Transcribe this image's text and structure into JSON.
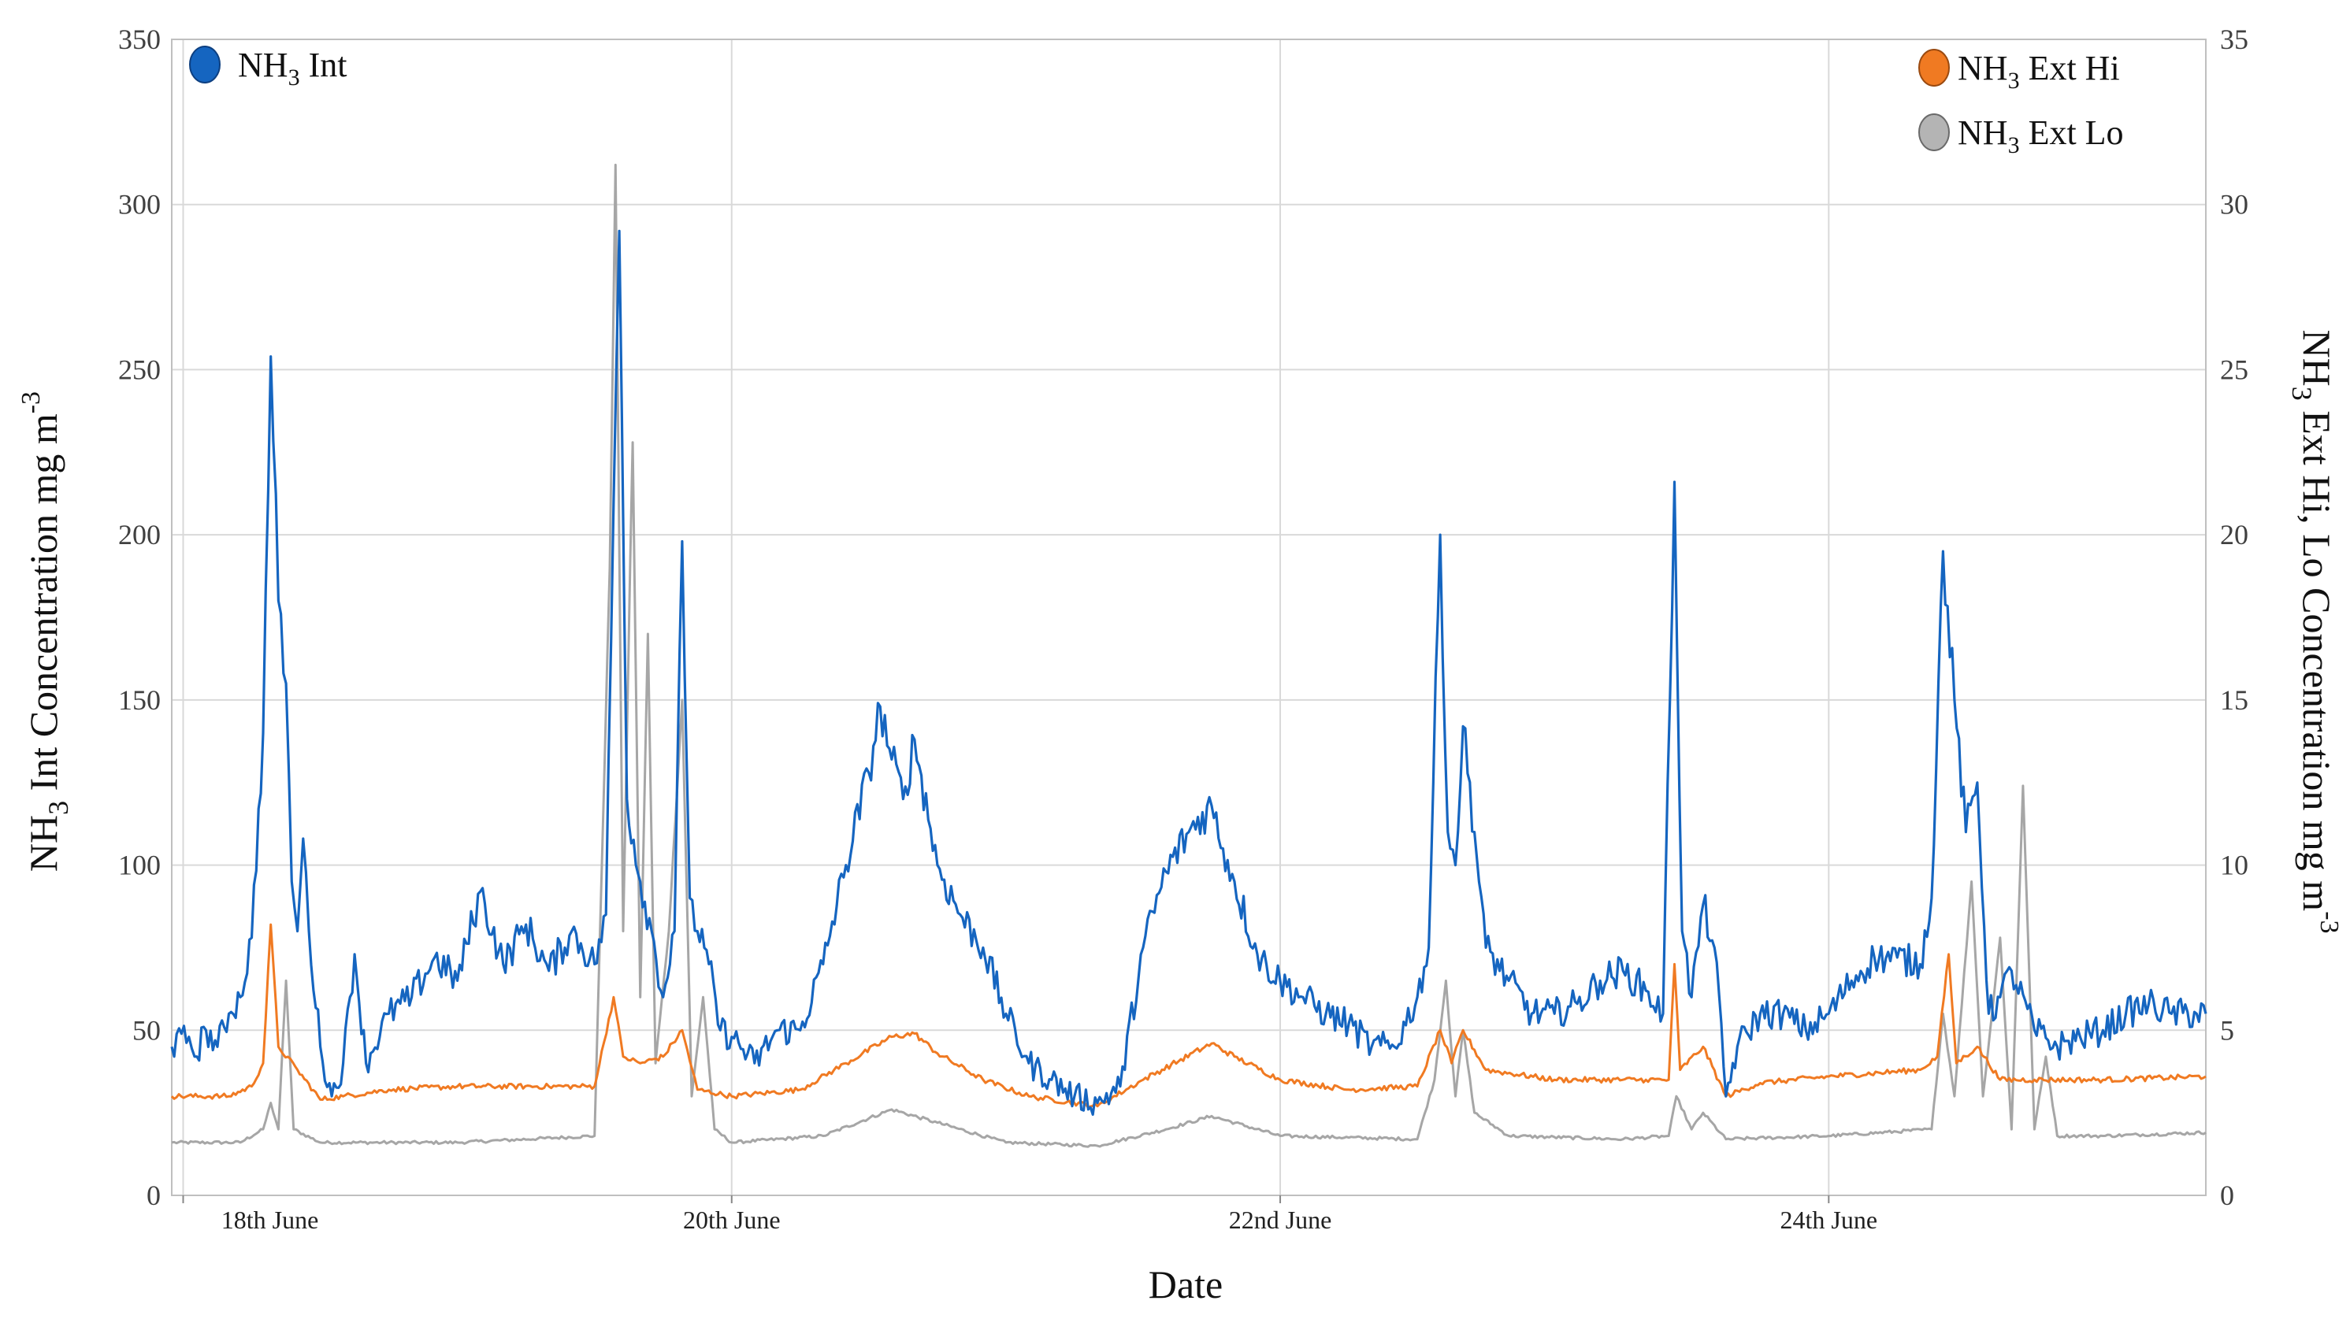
{
  "chart_data": {
    "type": "line",
    "xlabel": "Date",
    "ylabel_left": {
      "pre": "NH",
      "sub": "3",
      "post": " Int Concentration mg  m",
      "sup": "-3"
    },
    "ylabel_right": {
      "pre": "NH",
      "sub": "3",
      "post": " Ext Hi, Lo Concentration mg  m",
      "sup": "-3"
    },
    "x_start": "2018-06-17T23:00",
    "x_end": "2018-06-25T09:00",
    "x_ticks": [
      {
        "label": "18th June",
        "at": "2018-06-18T00:00"
      },
      {
        "label": "20th June",
        "at": "2018-06-20T00:00"
      },
      {
        "label": "22nd June",
        "at": "2018-06-22T00:00"
      },
      {
        "label": "24th June",
        "at": "2018-06-24T00:00"
      }
    ],
    "y_left": {
      "range": [
        0,
        350
      ],
      "ticks": [
        "0",
        "50",
        "100",
        "150",
        "200",
        "250",
        "300",
        "350"
      ]
    },
    "y_right": {
      "range": [
        0,
        35
      ],
      "ticks": [
        "0",
        "5",
        "10",
        "15",
        "20",
        "25",
        "30",
        "35"
      ]
    },
    "grid": true,
    "legend": [
      {
        "series": "int",
        "label_pre": "NH",
        "label_sub": "3",
        "label_post": " Int",
        "placement": "top-left"
      },
      {
        "series": "hi",
        "label_pre": "NH",
        "label_sub": "3",
        "label_post": " Ext Hi",
        "placement": "top-right"
      },
      {
        "series": "lo",
        "label_pre": "NH",
        "label_sub": "3",
        "label_post": " Ext Lo",
        "placement": "top-right"
      }
    ],
    "series": [
      {
        "id": "int",
        "axis": "left",
        "color": "#1565c0",
        "points": [
          [
            "2018-06-17T23:00",
            45
          ],
          [
            "2018-06-18T00:30",
            48
          ],
          [
            "2018-06-18T01:00",
            42
          ],
          [
            "2018-06-18T02:00",
            50
          ],
          [
            "2018-06-18T03:00",
            45
          ],
          [
            "2018-06-18T04:00",
            55
          ],
          [
            "2018-06-18T05:00",
            60
          ],
          [
            "2018-06-18T06:00",
            78
          ],
          [
            "2018-06-18T07:00",
            140
          ],
          [
            "2018-06-18T07:40",
            254
          ],
          [
            "2018-06-18T08:20",
            180
          ],
          [
            "2018-06-18T09:00",
            155
          ],
          [
            "2018-06-18T09:30",
            95
          ],
          [
            "2018-06-18T10:00",
            80
          ],
          [
            "2018-06-18T10:30",
            108
          ],
          [
            "2018-06-18T11:00",
            80
          ],
          [
            "2018-06-18T12:00",
            45
          ],
          [
            "2018-06-18T13:00",
            30
          ],
          [
            "2018-06-18T14:00",
            40
          ],
          [
            "2018-06-18T15:00",
            73
          ],
          [
            "2018-06-18T16:00",
            40
          ],
          [
            "2018-06-18T18:00",
            55
          ],
          [
            "2018-06-18T20:00",
            60
          ],
          [
            "2018-06-18T22:00",
            72
          ],
          [
            "2018-06-19T00:00",
            65
          ],
          [
            "2018-06-19T02:00",
            92
          ],
          [
            "2018-06-19T04:00",
            70
          ],
          [
            "2018-06-19T06:00",
            82
          ],
          [
            "2018-06-19T08:00",
            68
          ],
          [
            "2018-06-19T10:00",
            80
          ],
          [
            "2018-06-19T12:00",
            70
          ],
          [
            "2018-06-19T13:00",
            85
          ],
          [
            "2018-06-19T13:40",
            210
          ],
          [
            "2018-06-19T14:10",
            292
          ],
          [
            "2018-06-19T14:50",
            120
          ],
          [
            "2018-06-19T16:00",
            95
          ],
          [
            "2018-06-19T17:00",
            80
          ],
          [
            "2018-06-19T18:00",
            60
          ],
          [
            "2018-06-19T19:00",
            80
          ],
          [
            "2018-06-19T19:40",
            198
          ],
          [
            "2018-06-19T20:20",
            90
          ],
          [
            "2018-06-19T21:00",
            80
          ],
          [
            "2018-06-19T22:00",
            70
          ],
          [
            "2018-06-19T23:00",
            50
          ],
          [
            "2018-06-20T00:00",
            48
          ],
          [
            "2018-06-20T02:00",
            40
          ],
          [
            "2018-06-20T04:00",
            50
          ],
          [
            "2018-06-20T06:00",
            50
          ],
          [
            "2018-06-20T08:00",
            70
          ],
          [
            "2018-06-20T10:00",
            100
          ],
          [
            "2018-06-20T12:00",
            128
          ],
          [
            "2018-06-20T13:00",
            148
          ],
          [
            "2018-06-20T14:00",
            132
          ],
          [
            "2018-06-20T15:00",
            120
          ],
          [
            "2018-06-20T16:00",
            138
          ],
          [
            "2018-06-20T18:00",
            100
          ],
          [
            "2018-06-20T20:00",
            85
          ],
          [
            "2018-06-20T22:00",
            75
          ],
          [
            "2018-06-21T00:00",
            55
          ],
          [
            "2018-06-21T02:00",
            40
          ],
          [
            "2018-06-21T04:00",
            35
          ],
          [
            "2018-06-21T06:00",
            30
          ],
          [
            "2018-06-21T08:00",
            28
          ],
          [
            "2018-06-21T10:00",
            33
          ],
          [
            "2018-06-21T12:00",
            75
          ],
          [
            "2018-06-21T14:00",
            98
          ],
          [
            "2018-06-21T16:00",
            110
          ],
          [
            "2018-06-21T18:00",
            118
          ],
          [
            "2018-06-21T19:00",
            105
          ],
          [
            "2018-06-21T20:00",
            95
          ],
          [
            "2018-06-21T22:00",
            73
          ],
          [
            "2018-06-22T00:00",
            65
          ],
          [
            "2018-06-22T02:00",
            60
          ],
          [
            "2018-06-22T04:00",
            55
          ],
          [
            "2018-06-22T06:00",
            52
          ],
          [
            "2018-06-22T08:00",
            45
          ],
          [
            "2018-06-22T10:00",
            45
          ],
          [
            "2018-06-22T12:00",
            60
          ],
          [
            "2018-06-22T13:00",
            75
          ],
          [
            "2018-06-22T14:00",
            200
          ],
          [
            "2018-06-22T14:40",
            110
          ],
          [
            "2018-06-22T15:20",
            100
          ],
          [
            "2018-06-22T16:00",
            142
          ],
          [
            "2018-06-22T17:00",
            110
          ],
          [
            "2018-06-22T18:00",
            75
          ],
          [
            "2018-06-22T20:00",
            65
          ],
          [
            "2018-06-22T22:00",
            55
          ],
          [
            "2018-06-23T00:00",
            55
          ],
          [
            "2018-06-23T02:00",
            58
          ],
          [
            "2018-06-23T04:00",
            65
          ],
          [
            "2018-06-23T06:00",
            68
          ],
          [
            "2018-06-23T08:00",
            62
          ],
          [
            "2018-06-23T09:30",
            55
          ],
          [
            "2018-06-23T10:30",
            216
          ],
          [
            "2018-06-23T11:10",
            80
          ],
          [
            "2018-06-23T12:00",
            60
          ],
          [
            "2018-06-23T13:00",
            88
          ],
          [
            "2018-06-23T14:00",
            75
          ],
          [
            "2018-06-23T15:00",
            30
          ],
          [
            "2018-06-23T16:00",
            45
          ],
          [
            "2018-06-23T18:00",
            55
          ],
          [
            "2018-06-23T20:00",
            55
          ],
          [
            "2018-06-23T22:00",
            50
          ],
          [
            "2018-06-24T00:00",
            55
          ],
          [
            "2018-06-24T02:00",
            65
          ],
          [
            "2018-06-24T04:00",
            72
          ],
          [
            "2018-06-24T06:00",
            72
          ],
          [
            "2018-06-24T08:00",
            70
          ],
          [
            "2018-06-24T09:00",
            90
          ],
          [
            "2018-06-24T10:00",
            195
          ],
          [
            "2018-06-24T11:00",
            150
          ],
          [
            "2018-06-24T12:00",
            110
          ],
          [
            "2018-06-24T13:00",
            125
          ],
          [
            "2018-06-24T14:00",
            55
          ],
          [
            "2018-06-24T15:00",
            60
          ],
          [
            "2018-06-24T16:00",
            68
          ],
          [
            "2018-06-24T18:00",
            50
          ],
          [
            "2018-06-24T20:00",
            45
          ],
          [
            "2018-06-24T22:00",
            48
          ],
          [
            "2018-06-25T00:00",
            50
          ],
          [
            "2018-06-25T02:00",
            55
          ],
          [
            "2018-06-25T04:00",
            58
          ],
          [
            "2018-06-25T06:00",
            55
          ],
          [
            "2018-06-25T09:00",
            55
          ]
        ]
      },
      {
        "id": "hi",
        "axis": "right",
        "color": "#f07a22",
        "points": [
          [
            "2018-06-17T23:00",
            3.0
          ],
          [
            "2018-06-18T04:00",
            3.0
          ],
          [
            "2018-06-18T06:00",
            3.3
          ],
          [
            "2018-06-18T07:00",
            4.0
          ],
          [
            "2018-06-18T07:40",
            8.2
          ],
          [
            "2018-06-18T08:20",
            4.5
          ],
          [
            "2018-06-18T10:00",
            3.8
          ],
          [
            "2018-06-18T12:00",
            2.9
          ],
          [
            "2018-06-18T14:00",
            3.0
          ],
          [
            "2018-06-18T18:00",
            3.2
          ],
          [
            "2018-06-19T00:00",
            3.3
          ],
          [
            "2018-06-19T08:00",
            3.3
          ],
          [
            "2018-06-19T12:00",
            3.3
          ],
          [
            "2018-06-19T13:40",
            6.0
          ],
          [
            "2018-06-19T14:30",
            4.2
          ],
          [
            "2018-06-19T16:00",
            4.0
          ],
          [
            "2018-06-19T18:00",
            4.2
          ],
          [
            "2018-06-19T19:40",
            5.0
          ],
          [
            "2018-06-19T21:00",
            3.2
          ],
          [
            "2018-06-20T00:00",
            3.0
          ],
          [
            "2018-06-20T06:00",
            3.2
          ],
          [
            "2018-06-20T10:00",
            4.0
          ],
          [
            "2018-06-20T14:00",
            4.8
          ],
          [
            "2018-06-20T16:00",
            4.9
          ],
          [
            "2018-06-20T18:00",
            4.3
          ],
          [
            "2018-06-20T22:00",
            3.5
          ],
          [
            "2018-06-21T02:00",
            3.0
          ],
          [
            "2018-06-21T08:00",
            2.7
          ],
          [
            "2018-06-21T12:00",
            3.5
          ],
          [
            "2018-06-21T18:00",
            4.6
          ],
          [
            "2018-06-21T20:00",
            4.2
          ],
          [
            "2018-06-22T00:00",
            3.5
          ],
          [
            "2018-06-22T06:00",
            3.2
          ],
          [
            "2018-06-22T12:00",
            3.3
          ],
          [
            "2018-06-22T14:00",
            5.0
          ],
          [
            "2018-06-22T15:00",
            4.0
          ],
          [
            "2018-06-22T16:00",
            5.0
          ],
          [
            "2018-06-22T18:00",
            3.8
          ],
          [
            "2018-06-23T00:00",
            3.5
          ],
          [
            "2018-06-23T08:00",
            3.5
          ],
          [
            "2018-06-23T10:00",
            3.5
          ],
          [
            "2018-06-23T10:30",
            7.0
          ],
          [
            "2018-06-23T11:00",
            3.8
          ],
          [
            "2018-06-23T13:00",
            4.5
          ],
          [
            "2018-06-23T15:00",
            3.0
          ],
          [
            "2018-06-23T18:00",
            3.4
          ],
          [
            "2018-06-24T00:00",
            3.6
          ],
          [
            "2018-06-24T08:00",
            3.8
          ],
          [
            "2018-06-24T09:30",
            4.2
          ],
          [
            "2018-06-24T10:30",
            7.3
          ],
          [
            "2018-06-24T11:10",
            4.0
          ],
          [
            "2018-06-24T13:00",
            4.5
          ],
          [
            "2018-06-24T15:00",
            3.5
          ],
          [
            "2018-06-24T18:00",
            3.5
          ],
          [
            "2018-06-25T00:00",
            3.5
          ],
          [
            "2018-06-25T09:00",
            3.6
          ]
        ]
      },
      {
        "id": "lo",
        "axis": "right",
        "color": "#a6a6a6",
        "points": [
          [
            "2018-06-17T23:00",
            1.6
          ],
          [
            "2018-06-18T05:00",
            1.6
          ],
          [
            "2018-06-18T07:00",
            2.0
          ],
          [
            "2018-06-18T07:40",
            2.8
          ],
          [
            "2018-06-18T08:20",
            2.0
          ],
          [
            "2018-06-18T09:00",
            6.5
          ],
          [
            "2018-06-18T09:40",
            2.0
          ],
          [
            "2018-06-18T12:00",
            1.6
          ],
          [
            "2018-06-19T00:00",
            1.6
          ],
          [
            "2018-06-19T12:00",
            1.8
          ],
          [
            "2018-06-19T13:20",
            19.0
          ],
          [
            "2018-06-19T13:50",
            31.2
          ],
          [
            "2018-06-19T14:30",
            8.0
          ],
          [
            "2018-06-19T15:20",
            22.8
          ],
          [
            "2018-06-19T16:00",
            6.0
          ],
          [
            "2018-06-19T16:40",
            17.0
          ],
          [
            "2018-06-19T17:20",
            4.0
          ],
          [
            "2018-06-19T18:30",
            8.0
          ],
          [
            "2018-06-19T19:40",
            15.0
          ],
          [
            "2018-06-19T20:30",
            3.0
          ],
          [
            "2018-06-19T21:30",
            6.0
          ],
          [
            "2018-06-19T22:30",
            2.0
          ],
          [
            "2018-06-20T00:00",
            1.6
          ],
          [
            "2018-06-20T08:00",
            1.8
          ],
          [
            "2018-06-20T14:00",
            2.6
          ],
          [
            "2018-06-20T18:00",
            2.2
          ],
          [
            "2018-06-21T00:00",
            1.6
          ],
          [
            "2018-06-21T08:00",
            1.5
          ],
          [
            "2018-06-21T14:00",
            2.0
          ],
          [
            "2018-06-21T18:00",
            2.4
          ],
          [
            "2018-06-22T00:00",
            1.8
          ],
          [
            "2018-06-22T12:00",
            1.7
          ],
          [
            "2018-06-22T13:30",
            3.5
          ],
          [
            "2018-06-22T14:30",
            6.5
          ],
          [
            "2018-06-22T15:20",
            3.0
          ],
          [
            "2018-06-22T16:00",
            5.0
          ],
          [
            "2018-06-22T17:00",
            2.5
          ],
          [
            "2018-06-22T20:00",
            1.8
          ],
          [
            "2018-06-23T06:00",
            1.7
          ],
          [
            "2018-06-23T10:00",
            1.8
          ],
          [
            "2018-06-23T10:40",
            3.0
          ],
          [
            "2018-06-23T12:00",
            2.0
          ],
          [
            "2018-06-23T13:00",
            2.5
          ],
          [
            "2018-06-23T15:00",
            1.7
          ],
          [
            "2018-06-24T00:00",
            1.8
          ],
          [
            "2018-06-24T09:00",
            2.0
          ],
          [
            "2018-06-24T10:00",
            5.5
          ],
          [
            "2018-06-24T11:00",
            3.0
          ],
          [
            "2018-06-24T12:30",
            9.5
          ],
          [
            "2018-06-24T13:30",
            3.0
          ],
          [
            "2018-06-24T15:00",
            7.8
          ],
          [
            "2018-06-24T16:00",
            2.0
          ],
          [
            "2018-06-24T17:00",
            12.4
          ],
          [
            "2018-06-24T18:00",
            2.0
          ],
          [
            "2018-06-24T19:00",
            4.2
          ],
          [
            "2018-06-24T20:00",
            1.8
          ],
          [
            "2018-06-25T00:00",
            1.8
          ],
          [
            "2018-06-25T09:00",
            1.9
          ]
        ]
      }
    ]
  }
}
